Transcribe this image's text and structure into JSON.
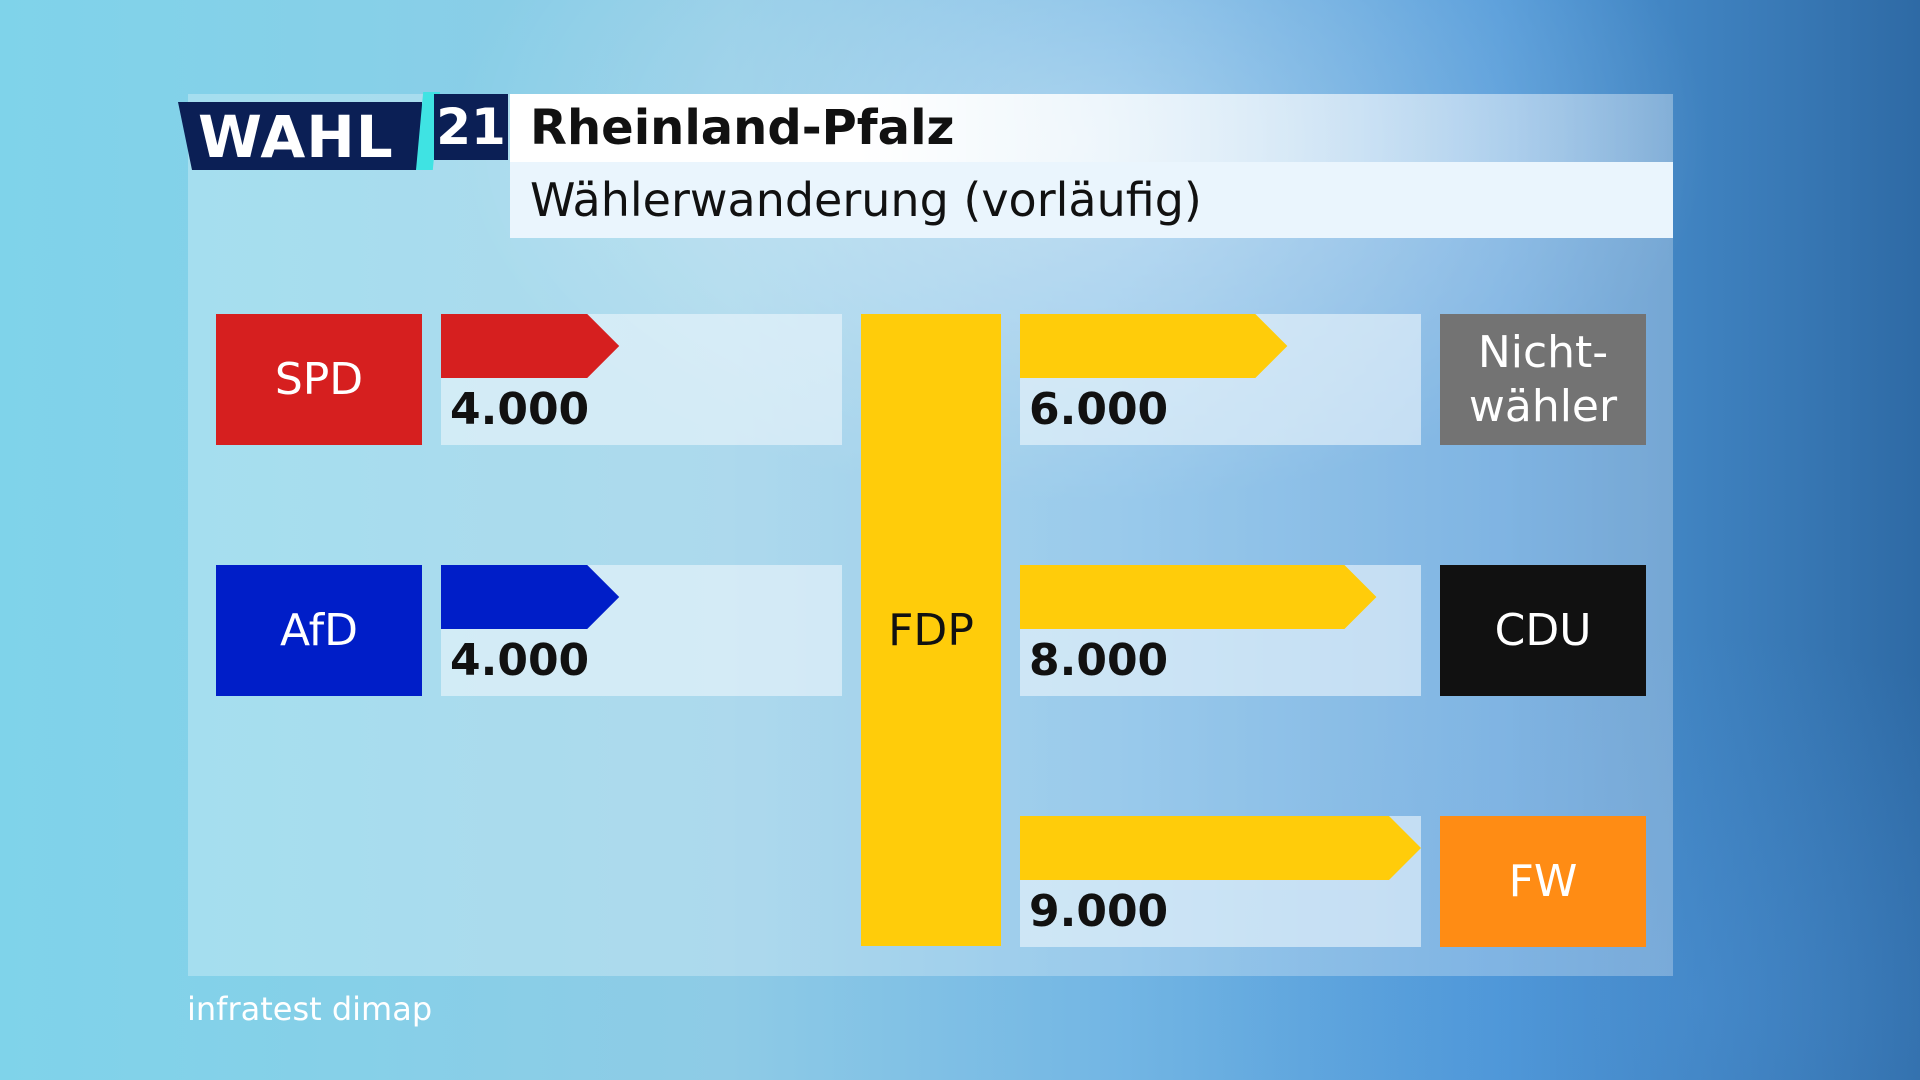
{
  "header": {
    "logo_word": "WAHL",
    "logo_year": "21",
    "title": "Rheinland-Pfalz",
    "subtitle": "Wählerwanderung (vorläufig)"
  },
  "source": "infratest dimap",
  "colors": {
    "spd": "#d61f1f",
    "afd": "#001ec8",
    "fdp": "#ffcc0a",
    "nichtwaehler": "#737373",
    "cdu": "#111111",
    "fw": "#ff8c14"
  },
  "chart_data": {
    "type": "bar",
    "title": "Wählerwanderung (vorläufig)",
    "center_party": "FDP",
    "inflows": [
      {
        "from": "SPD",
        "to": "FDP",
        "value": 4000,
        "label": "4.000"
      },
      {
        "from": "AfD",
        "to": "FDP",
        "value": 4000,
        "label": "4.000"
      }
    ],
    "outflows": [
      {
        "from": "FDP",
        "to": "Nicht-wähler",
        "value": 6000,
        "label": "6.000"
      },
      {
        "from": "FDP",
        "to": "CDU",
        "value": 8000,
        "label": "8.000"
      },
      {
        "from": "FDP",
        "to": "FW",
        "value": 9000,
        "label": "9.000"
      }
    ],
    "scale_max": 9000,
    "parties": {
      "spd": "SPD",
      "afd": "AfD",
      "fdp": "FDP",
      "nichtwaehler_line1": "Nicht-",
      "nichtwaehler_line2": "wähler",
      "cdu": "CDU",
      "fw": "FW"
    }
  }
}
